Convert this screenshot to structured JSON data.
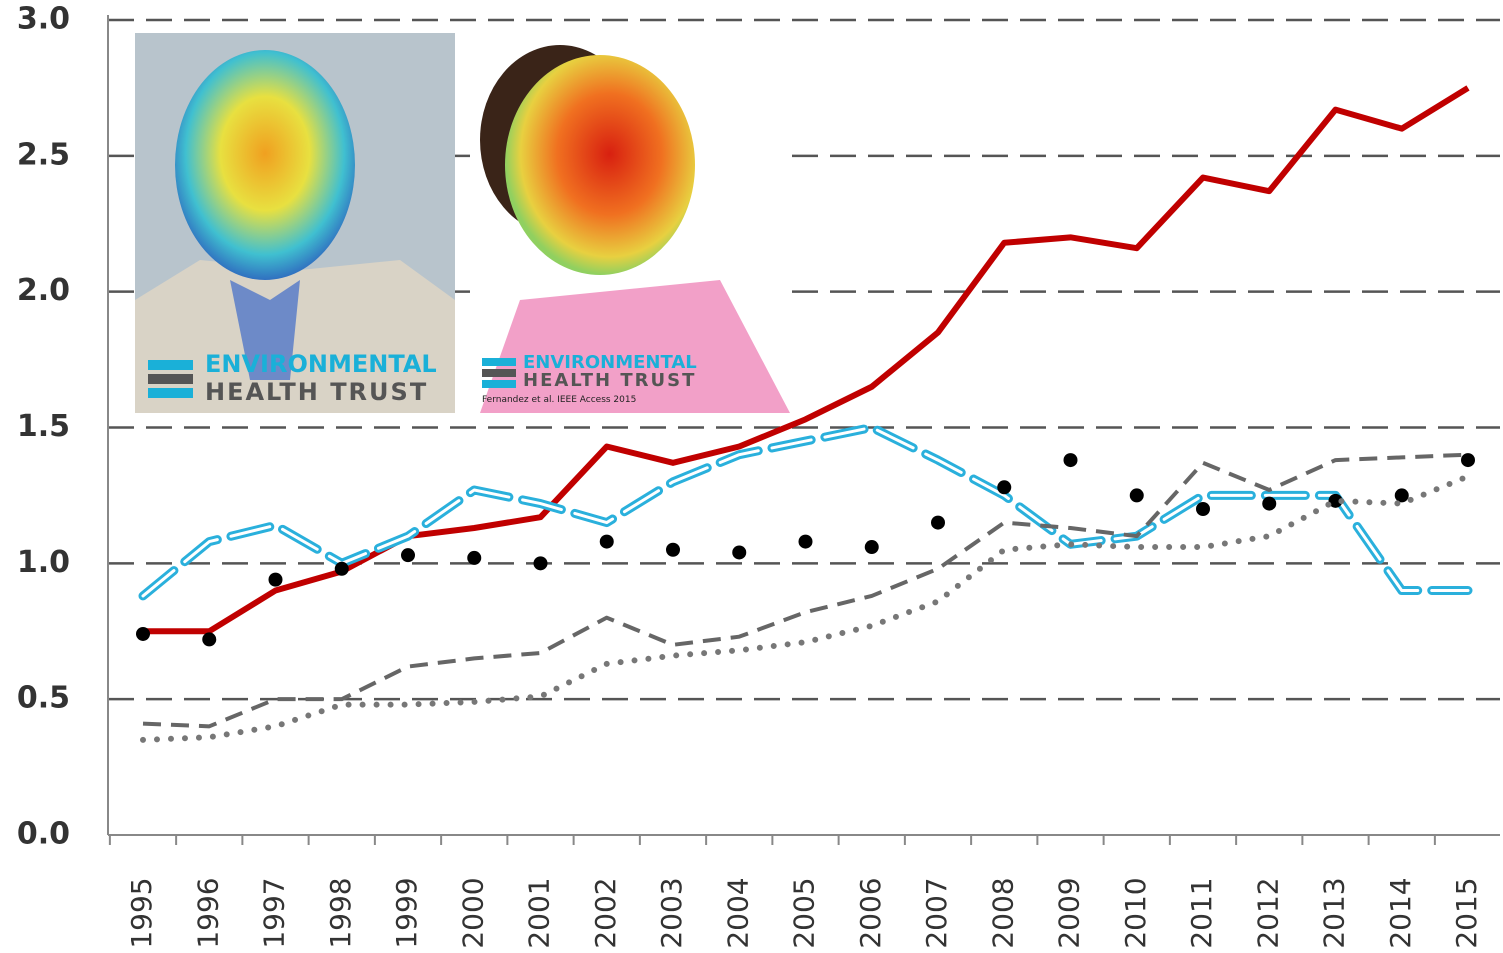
{
  "chart_data": {
    "type": "line",
    "categories": [
      "1995",
      "1996",
      "1997",
      "1998",
      "1999",
      "2000",
      "2001",
      "2002",
      "2003",
      "2004",
      "2005",
      "2006",
      "2007",
      "2008",
      "2009",
      "2010",
      "2011",
      "2012",
      "2013",
      "2014",
      "2015"
    ],
    "series": [
      {
        "color": "#c00000",
        "style": "solid",
        "values": [
          0.75,
          0.75,
          0.9,
          0.97,
          1.1,
          1.13,
          1.17,
          1.43,
          1.37,
          1.43,
          1.53,
          1.65,
          1.85,
          2.18,
          2.2,
          2.16,
          2.42,
          2.37,
          2.67,
          2.6,
          2.75
        ]
      },
      {
        "color": "#2ab0dc",
        "style": "longdash",
        "values": [
          0.88,
          1.08,
          1.14,
          1.0,
          1.1,
          1.27,
          1.22,
          1.15,
          1.3,
          1.4,
          1.45,
          1.5,
          1.38,
          1.25,
          1.07,
          1.1,
          1.25,
          1.25,
          1.25,
          0.9,
          0.9
        ]
      },
      {
        "color": "#000000",
        "style": "dots",
        "values": [
          0.74,
          0.72,
          0.94,
          0.98,
          1.03,
          1.02,
          1.0,
          1.08,
          1.05,
          1.04,
          1.08,
          1.06,
          1.15,
          1.28,
          1.38,
          1.25,
          1.2,
          1.22,
          1.23,
          1.25,
          1.38
        ]
      },
      {
        "color": "#666666",
        "style": "dash",
        "values": [
          0.41,
          0.4,
          0.5,
          0.5,
          0.62,
          0.65,
          0.67,
          0.8,
          0.7,
          0.73,
          0.82,
          0.88,
          0.98,
          1.15,
          1.13,
          1.1,
          1.37,
          1.27,
          1.38,
          1.39,
          1.4
        ]
      },
      {
        "color": "#777777",
        "style": "dotted",
        "values": [
          0.35,
          0.36,
          0.4,
          0.48,
          0.48,
          0.49,
          0.51,
          0.63,
          0.66,
          0.68,
          0.71,
          0.77,
          0.86,
          1.05,
          1.07,
          1.06,
          1.06,
          1.1,
          1.23,
          1.22,
          1.32
        ]
      }
    ],
    "ylim": [
      0,
      3
    ],
    "yticks": [
      {
        "value": 0,
        "label": "0.0"
      },
      0.5,
      {
        "value": 1,
        "label": "1.0"
      },
      1.5,
      {
        "value": 2,
        "label": "2.0"
      },
      2.5,
      {
        "value": 3,
        "label": "3.0"
      }
    ],
    "grid": true
  },
  "overlays": [
    {
      "logo_top": "ENVIRONMENTAL",
      "logo_bottom": "HEALTH TRUST"
    },
    {
      "logo_top": "ENVIRONMENTAL",
      "logo_bottom": "HEALTH TRUST",
      "credit": "Fernandez et al. IEEE Access 2015"
    }
  ]
}
